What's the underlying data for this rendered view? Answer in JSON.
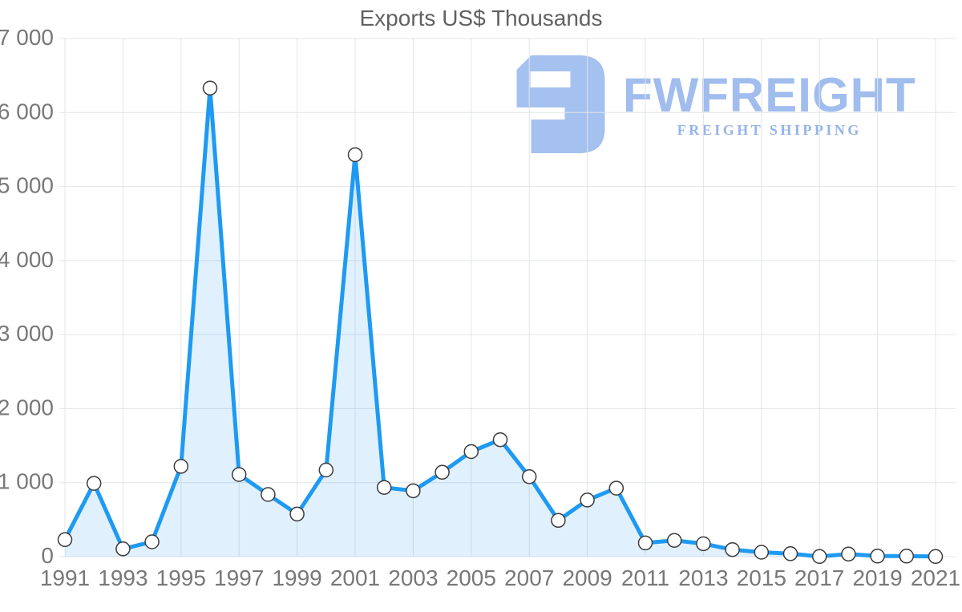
{
  "title": "Exports US$ Thousands",
  "watermark": {
    "brand": "FWFREIGHT",
    "tagline": "FREIGHT SHIPPING",
    "logo_icon": "fwfreight-logo-icon",
    "logo_color": "#a5c1ef",
    "brand_color": "#a0bdee",
    "tagline_color": "#94b4ea"
  },
  "chart_data": {
    "type": "area",
    "title": "Exports US$ Thousands",
    "x": [
      1991,
      1992,
      1993,
      1994,
      1995,
      1996,
      1997,
      1998,
      1999,
      2000,
      2001,
      2002,
      2003,
      2004,
      2005,
      2006,
      2007,
      2008,
      2009,
      2010,
      2011,
      2012,
      2013,
      2014,
      2015,
      2016,
      2017,
      2018,
      2019,
      2020,
      2021
    ],
    "series": [
      {
        "name": "Exports US$ Thousands",
        "values": [
          230,
          990,
          105,
          200,
          1220,
          6330,
          1110,
          840,
          575,
          1170,
          5430,
          935,
          890,
          1140,
          1420,
          1580,
          1080,
          490,
          765,
          925,
          185,
          220,
          175,
          95,
          60,
          40,
          2,
          35,
          8,
          8,
          2
        ]
      }
    ],
    "xlabel": "",
    "ylabel": "",
    "ylim": [
      0,
      7000
    ],
    "ytick_values": [
      0,
      1000,
      2000,
      3000,
      4000,
      5000,
      6000,
      7000
    ],
    "ytick_labels": [
      "0",
      "1 000",
      "2 000",
      "3 000",
      "4 000",
      "5 000",
      "6 000",
      "7 000"
    ],
    "xtick_values": [
      1991,
      1993,
      1995,
      1997,
      1999,
      2001,
      2003,
      2005,
      2007,
      2009,
      2011,
      2013,
      2015,
      2017,
      2019,
      2021
    ],
    "xtick_labels": [
      "1991",
      "1993",
      "1995",
      "1997",
      "1999",
      "2001",
      "2003",
      "2005",
      "2007",
      "2009",
      "2011",
      "2013",
      "2015",
      "2017",
      "2019",
      "2021"
    ],
    "grid": true,
    "legend_position": "none",
    "line_color": "#1e9af2",
    "fill_color": "rgba(33,150,243,0.14)",
    "marker_fill": "#ffffff",
    "marker_stroke": "#3c3c3c",
    "grid_color": "#e2e5e9",
    "axis_label_color": "#787878",
    "title_color": "#616161"
  }
}
